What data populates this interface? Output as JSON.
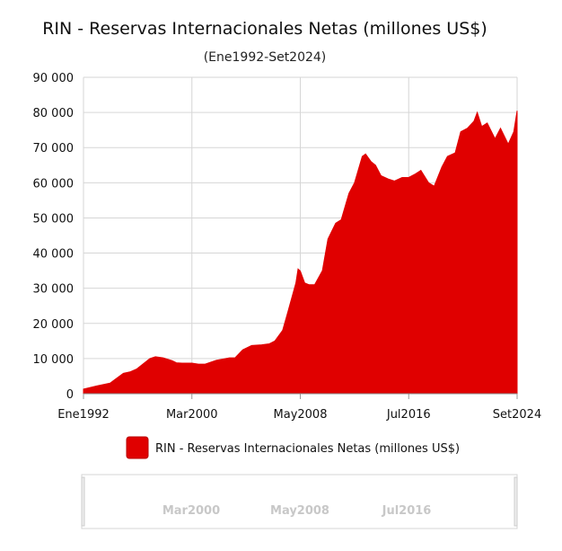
{
  "chart_data": {
    "type": "area",
    "title": "RIN - Reservas Internacionales Netas (millones US$)",
    "subtitle": "(Ene1992-Set2024)",
    "xlabel": "",
    "ylabel": "",
    "ylim": [
      0,
      90000
    ],
    "yticks": [
      "0",
      "10 000",
      "20 000",
      "30 000",
      "40 000",
      "50 000",
      "60 000",
      "70 000",
      "80 000",
      "90 000"
    ],
    "xticks": [
      "Ene1992",
      "Mar2000",
      "May2008",
      "Jul2016",
      "Set2024"
    ],
    "grid": true,
    "legend_position": "bottom",
    "color": "#e00000",
    "series": [
      {
        "name": "RIN - Reservas Internacionales Netas (millones US$)",
        "x": [
          "1992-01",
          "1993-01",
          "1994-01",
          "1995-01",
          "1995-07",
          "1996-01",
          "1997-01",
          "1997-06",
          "1998-01",
          "1998-09",
          "1999-01",
          "1999-06",
          "2000-03",
          "2000-09",
          "2001-03",
          "2002-01",
          "2003-01",
          "2003-06",
          "2004-01",
          "2004-09",
          "2005-06",
          "2006-01",
          "2006-06",
          "2007-01",
          "2007-06",
          "2008-01",
          "2008-03",
          "2008-05",
          "2008-09",
          "2009-01",
          "2009-06",
          "2010-01",
          "2010-06",
          "2011-01",
          "2011-06",
          "2012-01",
          "2012-06",
          "2013-01",
          "2013-04",
          "2013-09",
          "2014-01",
          "2014-06",
          "2015-01",
          "2015-06",
          "2016-01",
          "2016-07",
          "2017-01",
          "2017-06",
          "2018-01",
          "2018-06",
          "2019-01",
          "2019-06",
          "2020-01",
          "2020-06",
          "2020-12",
          "2021-06",
          "2021-09",
          "2022-01",
          "2022-06",
          "2023-01",
          "2023-06",
          "2024-01",
          "2024-06",
          "2024-09"
        ],
        "values": [
          1300,
          2200,
          3000,
          5800,
          6200,
          7000,
          10000,
          10500,
          10200,
          9400,
          8800,
          8700,
          8700,
          8400,
          8400,
          9500,
          10200,
          10200,
          12500,
          13700,
          13900,
          14200,
          15000,
          18000,
          23500,
          31500,
          35500,
          34900,
          31500,
          31000,
          31000,
          35000,
          44000,
          48500,
          49500,
          57000,
          60000,
          67500,
          68200,
          66000,
          65000,
          62000,
          61000,
          60500,
          61500,
          61500,
          62500,
          63500,
          60000,
          59000,
          64500,
          67500,
          68500,
          74500,
          75500,
          77500,
          80000,
          76000,
          77000,
          72500,
          75500,
          71000,
          74500,
          80500
        ]
      }
    ]
  },
  "navigator": {
    "labels": [
      "Mar2000",
      "May2008",
      "Jul2016"
    ]
  }
}
